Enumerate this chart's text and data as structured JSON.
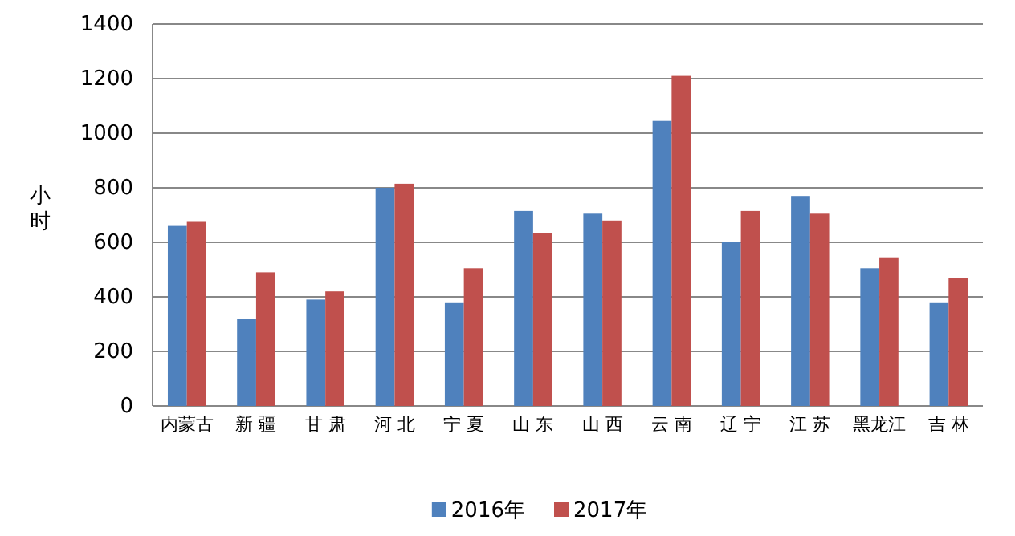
{
  "chart_data": {
    "type": "bar",
    "ylabel": "小时",
    "categories": [
      "内蒙古",
      "新 疆",
      "甘 肃",
      "河 北",
      "宁 夏",
      "山 东",
      "山 西",
      "云 南",
      "辽 宁",
      "江 苏",
      "黑龙江",
      "吉 林"
    ],
    "series": [
      {
        "name": "2016年",
        "color": "#4f81bd",
        "values": [
          660,
          320,
          390,
          800,
          380,
          715,
          705,
          1045,
          600,
          770,
          505,
          380
        ]
      },
      {
        "name": "2017年",
        "color": "#c0504d",
        "values": [
          675,
          490,
          420,
          815,
          505,
          635,
          680,
          1210,
          715,
          705,
          545,
          470
        ]
      }
    ],
    "ylim": [
      0,
      1400
    ],
    "yticks": [
      0,
      200,
      400,
      600,
      800,
      1000,
      1200,
      1400
    ],
    "grid": "y",
    "legend": "bottom"
  }
}
